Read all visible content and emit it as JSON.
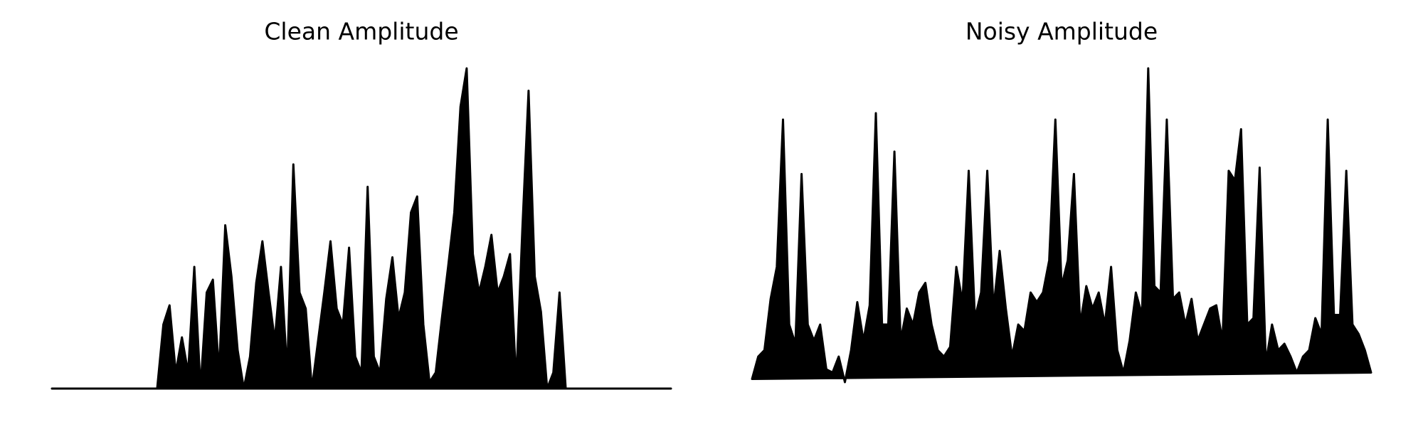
{
  "chart_data": [
    {
      "type": "area",
      "title": "Clean Amplitude",
      "color": "#000000",
      "ylim": [
        0,
        1
      ],
      "values": [
        0,
        0,
        0,
        0,
        0,
        0,
        0,
        0,
        0,
        0,
        0,
        0,
        0,
        0,
        0,
        0,
        0,
        0,
        0.2,
        0.26,
        0.05,
        0.16,
        0.05,
        0.38,
        0,
        0.3,
        0.34,
        0.05,
        0.51,
        0.35,
        0.12,
        0,
        0.1,
        0.33,
        0.46,
        0.3,
        0.15,
        0.38,
        0.05,
        0.7,
        0.3,
        0.25,
        0,
        0.15,
        0.3,
        0.46,
        0.25,
        0.2,
        0.44,
        0.1,
        0.05,
        0.63,
        0.1,
        0.05,
        0.28,
        0.41,
        0.22,
        0.3,
        0.55,
        0.6,
        0.2,
        0.02,
        0.05,
        0.22,
        0.38,
        0.55,
        0.88,
        1.0,
        0.42,
        0.3,
        0.38,
        0.48,
        0.3,
        0.35,
        0.42,
        0.02,
        0.5,
        0.93,
        0.35,
        0.24,
        0,
        0.05,
        0.3,
        0,
        0,
        0,
        0,
        0,
        0,
        0,
        0,
        0,
        0,
        0,
        0,
        0,
        0,
        0,
        0,
        0,
        0
      ]
    },
    {
      "type": "area",
      "title": "Noisy Amplitude",
      "color": "#000000",
      "ylim": [
        0,
        1
      ],
      "values": [
        0.03,
        0.1,
        0.12,
        0.28,
        0.38,
        0.84,
        0.2,
        0.14,
        0.67,
        0.2,
        0.15,
        0.2,
        0.06,
        0.05,
        0.1,
        0.02,
        0.12,
        0.27,
        0.15,
        0.26,
        0.86,
        0.2,
        0.2,
        0.74,
        0.15,
        0.25,
        0.2,
        0.3,
        0.33,
        0.2,
        0.12,
        0.1,
        0.13,
        0.38,
        0.27,
        0.68,
        0.22,
        0.3,
        0.68,
        0.25,
        0.43,
        0.25,
        0.1,
        0.2,
        0.18,
        0.3,
        0.27,
        0.3,
        0.4,
        0.84,
        0.32,
        0.4,
        0.67,
        0.2,
        0.32,
        0.25,
        0.3,
        0.2,
        0.38,
        0.12,
        0.05,
        0.15,
        0.3,
        0.23,
        1.0,
        0.32,
        0.3,
        0.84,
        0.28,
        0.3,
        0.2,
        0.28,
        0.15,
        0.2,
        0.25,
        0.26,
        0.15,
        0.68,
        0.65,
        0.81,
        0.2,
        0.22,
        0.69,
        0.08,
        0.2,
        0.12,
        0.14,
        0.1,
        0.05,
        0.1,
        0.12,
        0.22,
        0.17,
        0.84,
        0.23,
        0.23,
        0.68,
        0.2,
        0.17,
        0.12,
        0.05
      ]
    }
  ]
}
